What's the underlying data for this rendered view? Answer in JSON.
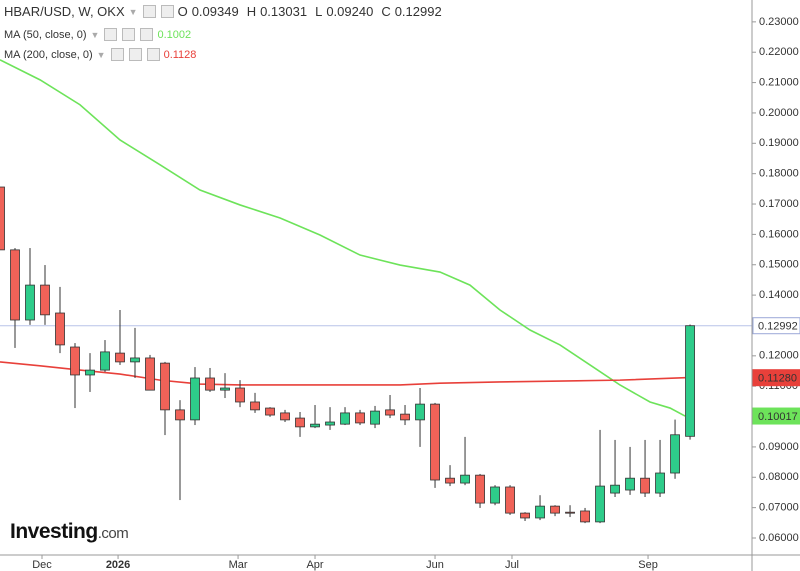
{
  "chart_data": {
    "type": "candlestick",
    "title": "HBAR/USD, W, OKX",
    "candles": {
      "field_letters": {
        "open": "O",
        "high": "H",
        "low": "L",
        "close": "C"
      },
      "value_labels": {
        "open": "0.09349",
        "high": "0.13031",
        "low": "0.09240",
        "close": "0.12992"
      },
      "up_color": "#2ecc8a",
      "down_color": "#f06258",
      "edge_color": "#333333",
      "x": [
        0,
        1,
        2,
        3,
        4,
        5,
        6,
        7,
        8,
        9,
        10,
        11,
        12,
        13,
        14,
        15,
        16,
        17,
        18,
        19,
        20,
        21,
        22,
        23,
        24,
        25,
        26,
        27,
        28,
        29,
        30,
        31,
        32,
        33,
        34,
        35,
        36,
        37,
        38,
        39,
        40,
        41,
        42,
        43,
        44,
        45,
        46
      ],
      "open": [
        0.1756,
        0.1549,
        0.1318,
        0.1433,
        0.1341,
        0.1229,
        0.1137,
        0.1153,
        0.1209,
        0.118,
        0.1193,
        0.1176,
        0.1022,
        0.0989,
        0.1127,
        0.1087,
        0.1094,
        0.1048,
        0.1028,
        0.1012,
        0.0995,
        0.0966,
        0.0972,
        0.0975,
        0.1012,
        0.0975,
        0.1022,
        0.1008,
        0.0989,
        0.1041,
        0.0797,
        0.0781,
        0.0807,
        0.0715,
        0.0768,
        0.0682,
        0.0666,
        0.0705,
        0.0685,
        0.0689,
        0.0653,
        0.0748,
        0.0758,
        0.0797,
        0.0748,
        0.0814,
        0.09349
      ],
      "high": [
        0.1756,
        0.1555,
        0.1555,
        0.1499,
        0.1427,
        0.1242,
        0.1209,
        0.1252,
        0.1351,
        0.1292,
        0.1203,
        0.118,
        0.1054,
        0.1163,
        0.116,
        0.1143,
        0.112,
        0.1078,
        0.1031,
        0.1022,
        0.1015,
        0.1038,
        0.1031,
        0.1031,
        0.1022,
        0.1035,
        0.1071,
        0.1038,
        0.1094,
        0.1045,
        0.084,
        0.0933,
        0.0811,
        0.0774,
        0.0774,
        0.0685,
        0.0741,
        0.0708,
        0.0708,
        0.0699,
        0.0956,
        0.0923,
        0.09,
        0.0923,
        0.0923,
        0.099,
        0.13031
      ],
      "low": [
        0.1549,
        0.1226,
        0.1302,
        0.1302,
        0.1209,
        0.1028,
        0.1081,
        0.1147,
        0.117,
        0.1127,
        0.1087,
        0.0939,
        0.0725,
        0.0972,
        0.1081,
        0.1061,
        0.1031,
        0.1012,
        0.0999,
        0.0982,
        0.0933,
        0.0962,
        0.0956,
        0.0972,
        0.0972,
        0.0962,
        0.0995,
        0.0972,
        0.09,
        0.0765,
        0.0771,
        0.0774,
        0.0699,
        0.0708,
        0.0676,
        0.0656,
        0.0659,
        0.0672,
        0.0669,
        0.0649,
        0.0649,
        0.0735,
        0.0742,
        0.0735,
        0.0735,
        0.0795,
        0.0924
      ],
      "close": [
        0.1549,
        0.1318,
        0.1433,
        0.1335,
        0.1236,
        0.1137,
        0.1153,
        0.1213,
        0.118,
        0.1193,
        0.1087,
        0.1022,
        0.0989,
        0.1127,
        0.1087,
        0.1094,
        0.1048,
        0.1022,
        0.1005,
        0.0989,
        0.0966,
        0.0975,
        0.0982,
        0.1012,
        0.0979,
        0.1018,
        0.1005,
        0.0989,
        0.1041,
        0.0791,
        0.0781,
        0.0807,
        0.0715,
        0.0768,
        0.0682,
        0.0666,
        0.0705,
        0.0682,
        0.0682,
        0.0653,
        0.0771,
        0.0774,
        0.0797,
        0.0748,
        0.0814,
        0.094,
        0.12992
      ]
    },
    "series": [
      {
        "name": "MA (50, close, 0)",
        "color": "#6de35a",
        "value_label": "0.1002",
        "axis_label": "0.10017",
        "x": [
          0,
          2.67,
          5.33,
          8,
          10.67,
          13.33,
          16,
          18.67,
          21.33,
          24,
          26.67,
          29.33,
          31.33,
          33.33,
          35.33,
          37.33,
          39.33,
          41.33,
          43.33,
          44.67,
          45.67
        ],
        "values": [
          0.2175,
          0.2109,
          0.2027,
          0.1911,
          0.1829,
          0.1746,
          0.1697,
          0.1654,
          0.1598,
          0.1532,
          0.1499,
          0.1476,
          0.1433,
          0.1351,
          0.1285,
          0.1236,
          0.117,
          0.1104,
          0.1048,
          0.1028,
          0.10017
        ]
      },
      {
        "name": "MA (200, close, 0)",
        "color": "#e8403a",
        "value_label": "0.1128",
        "axis_label": "0.11280",
        "x": [
          0,
          2.67,
          5.33,
          8,
          10.67,
          13.33,
          16,
          26.67,
          29.33,
          33.33,
          37.33,
          41.33,
          45.67
        ],
        "values": [
          0.118,
          0.1167,
          0.1153,
          0.114,
          0.112,
          0.1107,
          0.1104,
          0.1104,
          0.111,
          0.1114,
          0.1117,
          0.112,
          0.1128
        ]
      }
    ],
    "xlim": [
      0,
      50.13
    ],
    "xticks": [
      {
        "value": 2.8,
        "label": "Dec"
      },
      {
        "value": 7.87,
        "label": "2026"
      },
      {
        "value": 15.87,
        "label": "Mar"
      },
      {
        "value": 21,
        "label": "Apr"
      },
      {
        "value": 29,
        "label": "Jun"
      },
      {
        "value": 34.13,
        "label": "Jul"
      },
      {
        "value": 43.2,
        "label": "Sep"
      }
    ],
    "ylim": [
      0.0544,
      0.2372
    ],
    "yticks": [
      {
        "value": 0.06,
        "label": "0.06000"
      },
      {
        "value": 0.07,
        "label": "0.07000"
      },
      {
        "value": 0.08,
        "label": "0.08000"
      },
      {
        "value": 0.09,
        "label": "0.09000"
      },
      {
        "value": 0.1,
        "label": "0.10000"
      },
      {
        "value": 0.11,
        "label": "0.11000"
      },
      {
        "value": 0.12,
        "label": "0.12000"
      },
      {
        "value": 0.13,
        "label": "0.13000"
      },
      {
        "value": 0.14,
        "label": "0.14000"
      },
      {
        "value": 0.15,
        "label": "0.15000"
      },
      {
        "value": 0.16,
        "label": "0.16000"
      },
      {
        "value": 0.17,
        "label": "0.17000"
      },
      {
        "value": 0.18,
        "label": "0.18000"
      },
      {
        "value": 0.19,
        "label": "0.19000"
      },
      {
        "value": 0.2,
        "label": "0.20000"
      },
      {
        "value": 0.21,
        "label": "0.21000"
      },
      {
        "value": 0.22,
        "label": "0.22000"
      },
      {
        "value": 0.23,
        "label": "0.23000"
      }
    ],
    "grid": false,
    "logo": {
      "name": "Investing",
      "suffix": ".com"
    }
  }
}
